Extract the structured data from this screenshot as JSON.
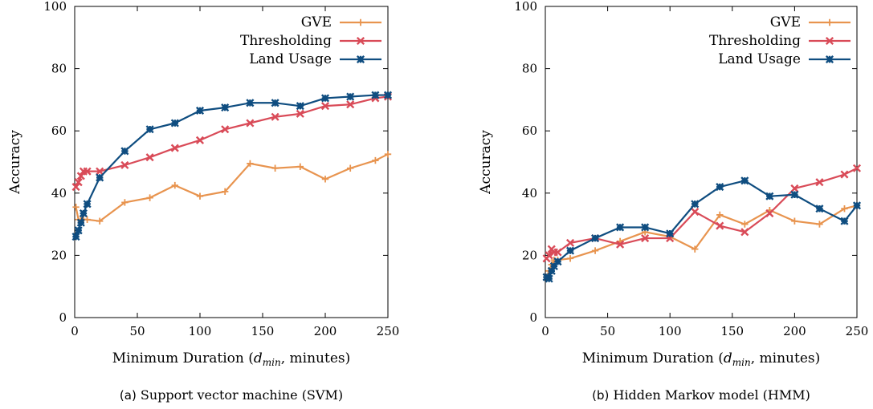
{
  "chart_data": [
    {
      "type": "line",
      "caption_tag": "(a)",
      "caption": "Support vector machine (SVM)",
      "xlabel": "Minimum Duration (d_min, minutes)",
      "xlabel_parts": {
        "pre": "Minimum Duration (",
        "var": "d",
        "sub": "min",
        "post": ", minutes)"
      },
      "ylabel": "Accuracy",
      "xlim": [
        0,
        250
      ],
      "ylim": [
        0,
        100
      ],
      "xticks": [
        "0",
        "50",
        "100",
        "150",
        "200",
        "250"
      ],
      "yticks": [
        "0",
        "20",
        "40",
        "60",
        "80",
        "100"
      ],
      "legend_position": "top-right",
      "grid": false,
      "x": [
        1,
        3,
        5,
        7,
        10,
        20,
        40,
        60,
        80,
        100,
        120,
        140,
        160,
        180,
        200,
        220,
        240,
        250
      ],
      "series": [
        {
          "name": "GVE",
          "color": "#e8944f",
          "marker": "plus",
          "values": [
            35.5,
            31.5,
            31.5,
            31.5,
            31.5,
            31,
            37,
            38.5,
            42.5,
            39,
            40.5,
            49.5,
            48,
            48.5,
            44.5,
            48,
            50.5,
            52.5
          ]
        },
        {
          "name": "Thresholding",
          "color": "#d94b58",
          "marker": "x",
          "values": [
            42,
            43.5,
            45.5,
            47,
            47,
            47,
            49,
            51.5,
            54.5,
            57,
            60.5,
            62.5,
            64.5,
            65.5,
            68,
            68.5,
            70.5,
            71
          ]
        },
        {
          "name": "Land Usage",
          "color": "#0f4d80",
          "marker": "star",
          "values": [
            26,
            28,
            30.5,
            33.5,
            36.5,
            45,
            53.5,
            60.5,
            62.5,
            66.5,
            67.5,
            69,
            69,
            68,
            70.5,
            71,
            71.5,
            71.5
          ]
        }
      ]
    },
    {
      "type": "line",
      "caption_tag": "(b)",
      "caption": "Hidden Markov model (HMM)",
      "xlabel": "Minimum Duration (d_min, minutes)",
      "xlabel_parts": {
        "pre": "Minimum Duration (",
        "var": "d",
        "sub": "min",
        "post": ", minutes)"
      },
      "ylabel": "Accuracy",
      "xlim": [
        0,
        250
      ],
      "ylim": [
        0,
        100
      ],
      "xticks": [
        "0",
        "50",
        "100",
        "150",
        "200",
        "250"
      ],
      "yticks": [
        "0",
        "20",
        "40",
        "60",
        "80",
        "100"
      ],
      "legend_position": "top-right",
      "grid": false,
      "x": [
        1,
        3,
        5,
        7,
        10,
        20,
        40,
        60,
        80,
        100,
        120,
        140,
        160,
        180,
        200,
        220,
        240,
        250
      ],
      "series": [
        {
          "name": "GVE",
          "color": "#e8944f",
          "marker": "plus",
          "values": [
            13,
            15,
            17,
            18.5,
            18.5,
            19,
            21.5,
            24.5,
            27.5,
            26,
            22,
            33,
            30,
            34.5,
            31,
            30,
            35,
            36
          ]
        },
        {
          "name": "Thresholding",
          "color": "#d94b58",
          "marker": "x",
          "values": [
            19,
            20,
            22,
            21,
            21,
            24,
            25.5,
            23.5,
            25.5,
            25.5,
            34,
            29.5,
            27.5,
            33.5,
            41.5,
            43.5,
            46,
            48
          ]
        },
        {
          "name": "Land Usage",
          "color": "#0f4d80",
          "marker": "star",
          "values": [
            13,
            12.5,
            15,
            16.5,
            18,
            21.5,
            25.5,
            29,
            29,
            27,
            36.5,
            42,
            44,
            39,
            39.5,
            35,
            31,
            36
          ]
        }
      ]
    }
  ]
}
